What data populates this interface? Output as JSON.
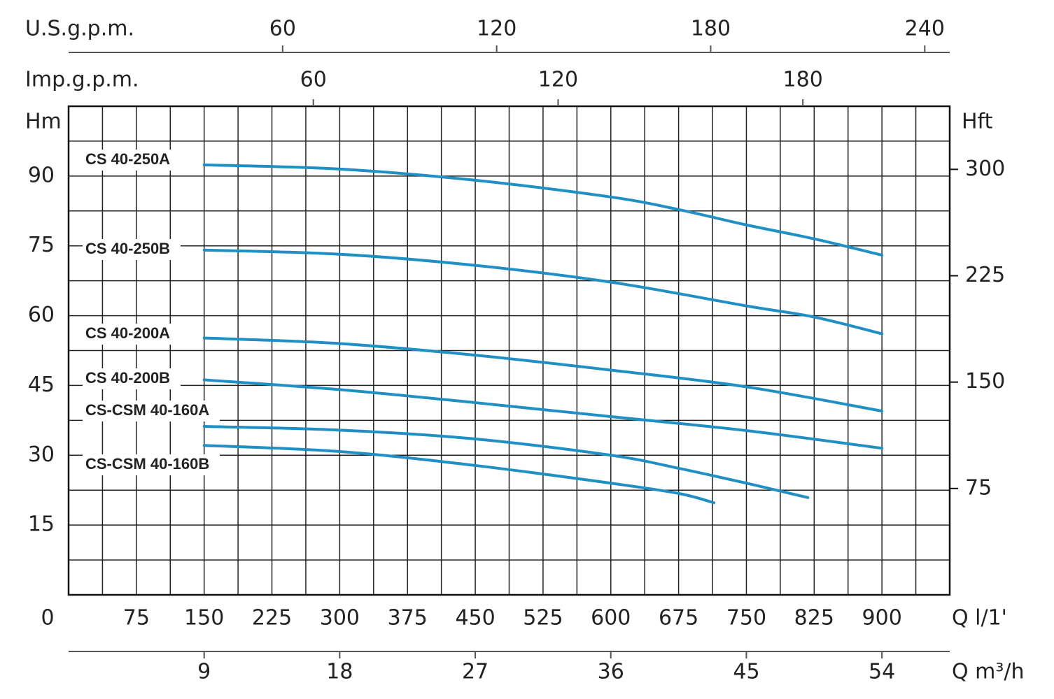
{
  "chart_data": {
    "type": "line",
    "xlabel": "Q l/1'",
    "ylabel": "Hm",
    "y2label": "Hft",
    "xlim": [
      0,
      975
    ],
    "xticks": [
      0,
      75,
      150,
      225,
      300,
      375,
      450,
      525,
      600,
      675,
      750,
      825,
      900
    ],
    "ylim": [
      0,
      105
    ],
    "yticks": [
      15,
      30,
      45,
      60,
      75,
      90
    ],
    "y2lim": [
      0,
      344.5
    ],
    "y2ticks": [
      75,
      150,
      225,
      300
    ],
    "grid": {
      "x_step": 37.5,
      "y_step": 7.5
    },
    "secondary_x_axes": [
      {
        "label": "U.S.g.p.m.",
        "position": "top",
        "lim": [
          0,
          247
        ],
        "ticks": [
          60,
          120,
          180,
          240
        ]
      },
      {
        "label": "Imp.g.p.m.",
        "position": "top",
        "lim": [
          0,
          216
        ],
        "ticks": [
          60,
          120,
          180
        ]
      },
      {
        "label": "Q m³/h",
        "position": "bottom",
        "lim": [
          0,
          58.5
        ],
        "ticks": [
          9,
          18,
          27,
          36,
          45,
          54
        ]
      }
    ],
    "color": "#1f8fc4",
    "series": [
      {
        "name": "CS 40-250A",
        "x": [
          150,
          300,
          450,
          600,
          675,
          750,
          825,
          900
        ],
        "values": [
          92.4,
          91.5,
          89.1,
          85.5,
          82.8,
          79.5,
          76.5,
          73.0
        ]
      },
      {
        "name": "CS 40-250B",
        "x": [
          150,
          300,
          450,
          600,
          750,
          825,
          900
        ],
        "values": [
          74.1,
          73.2,
          70.8,
          67.2,
          62.1,
          59.7,
          56.1
        ]
      },
      {
        "name": "CS 40-200A",
        "x": [
          150,
          300,
          450,
          600,
          750,
          900
        ],
        "values": [
          55.2,
          54,
          51.5,
          48.3,
          44.7,
          39.5
        ]
      },
      {
        "name": "CS 40-200B",
        "x": [
          150,
          300,
          450,
          600,
          750,
          900
        ],
        "values": [
          46.2,
          44.1,
          41.3,
          38.3,
          35.3,
          31.5
        ]
      },
      {
        "name": "CS-CSM 40-160A",
        "x": [
          150,
          300,
          450,
          600,
          675,
          750,
          818
        ],
        "values": [
          36.2,
          35.4,
          33.5,
          30,
          27.2,
          24,
          20.9
        ]
      },
      {
        "name": "CS-CSM 40-160B",
        "x": [
          150,
          300,
          450,
          600,
          675,
          714
        ],
        "values": [
          32.1,
          30.8,
          27.8,
          24,
          21.8,
          19.8
        ]
      }
    ]
  }
}
